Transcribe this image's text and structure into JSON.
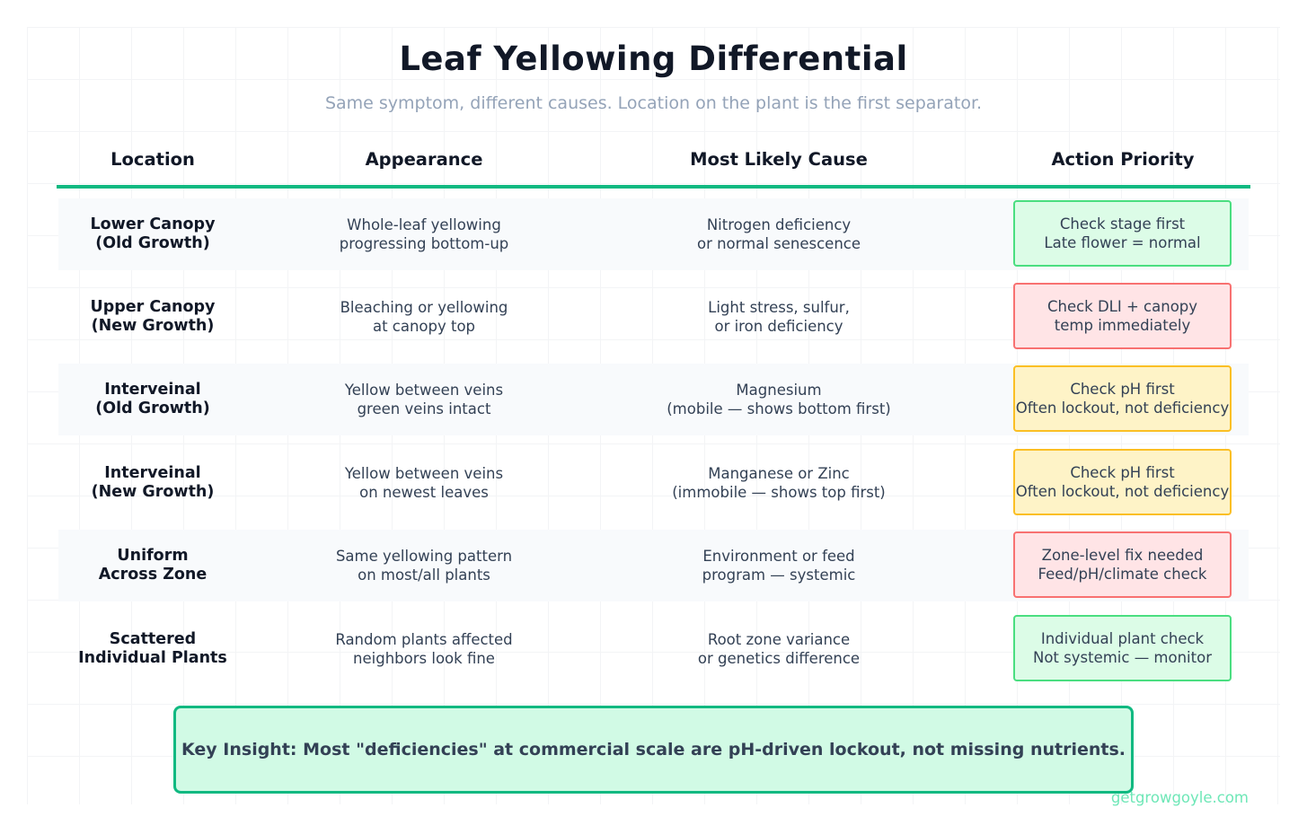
{
  "title": "Leaf Yellowing Differential",
  "subtitle": "Same symptom, different causes. Location on the plant is the first separator.",
  "columns": {
    "location": "Location",
    "appearance": "Appearance",
    "cause": "Most Likely Cause",
    "action": "Action Priority"
  },
  "colors": {
    "accent": "#10b981",
    "priority_low_bg": "#dcfce7",
    "priority_low_border": "#4ade80",
    "priority_high_bg": "#ffe4e6",
    "priority_high_border": "#f87171",
    "priority_medium_bg": "#fef3c7",
    "priority_medium_border": "#fbbf24"
  },
  "rows": [
    {
      "location": [
        "Lower Canopy",
        "(Old Growth)"
      ],
      "appearance": [
        "Whole-leaf yellowing",
        "progressing bottom-up"
      ],
      "cause": [
        "Nitrogen deficiency",
        "or normal senescence"
      ],
      "action": [
        "Check stage first",
        "Late flower = normal"
      ],
      "priority": "low"
    },
    {
      "location": [
        "Upper Canopy",
        "(New Growth)"
      ],
      "appearance": [
        "Bleaching or yellowing",
        "at canopy top"
      ],
      "cause": [
        "Light stress, sulfur,",
        "or iron deficiency"
      ],
      "action": [
        "Check DLI + canopy",
        "temp immediately"
      ],
      "priority": "high"
    },
    {
      "location": [
        "Interveinal",
        "(Old Growth)"
      ],
      "appearance": [
        "Yellow between veins",
        "green veins intact"
      ],
      "cause": [
        "Magnesium",
        "(mobile — shows bottom first)"
      ],
      "action": [
        "Check pH first",
        "Often lockout, not deficiency"
      ],
      "priority": "medium"
    },
    {
      "location": [
        "Interveinal",
        "(New Growth)"
      ],
      "appearance": [
        "Yellow between veins",
        "on newest leaves"
      ],
      "cause": [
        "Manganese or Zinc",
        "(immobile — shows top first)"
      ],
      "action": [
        "Check pH first",
        "Often lockout, not deficiency"
      ],
      "priority": "medium"
    },
    {
      "location": [
        "Uniform",
        "Across Zone"
      ],
      "appearance": [
        "Same yellowing pattern",
        "on most/all plants"
      ],
      "cause": [
        "Environment or feed",
        "program — systemic"
      ],
      "action": [
        "Zone-level fix needed",
        "Feed/pH/climate check"
      ],
      "priority": "high"
    },
    {
      "location": [
        "Scattered",
        "Individual Plants"
      ],
      "appearance": [
        "Random plants affected",
        "neighbors look fine"
      ],
      "cause": [
        "Root zone variance",
        "or genetics difference"
      ],
      "action": [
        "Individual plant check",
        "Not systemic — monitor"
      ],
      "priority": "low"
    }
  ],
  "insight": "Key Insight: Most \"deficiencies\" at commercial scale are pH-driven lockout, not missing nutrients.",
  "footer": "getgrowgoyle.com"
}
